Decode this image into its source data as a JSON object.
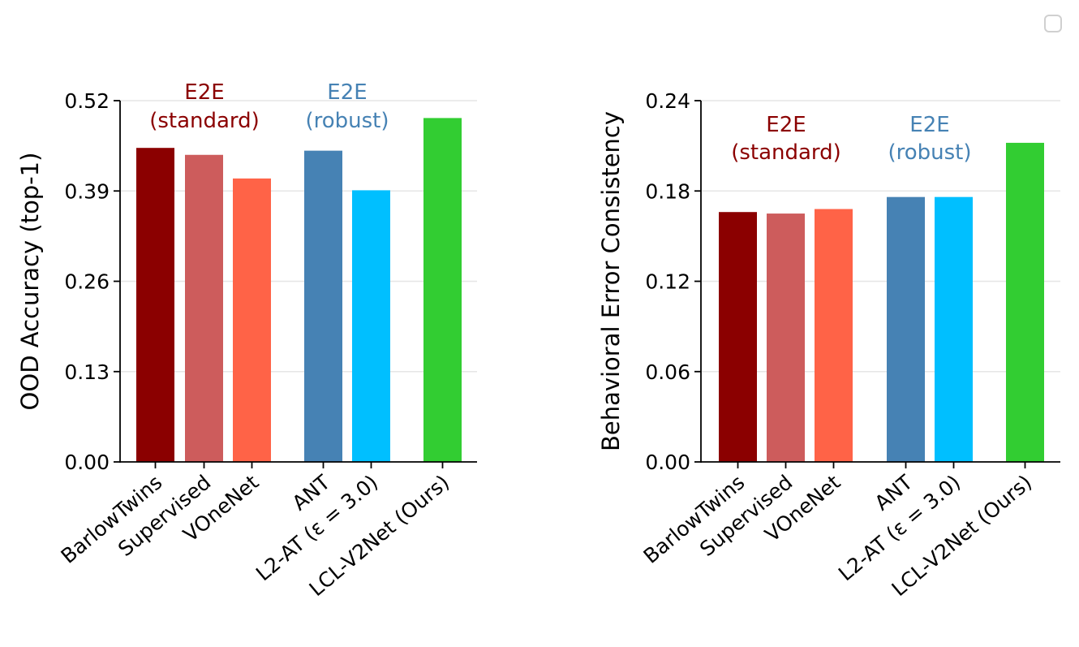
{
  "colors": {
    "standard": "#8b0000",
    "robust": "#4682b4",
    "grid": "#e6e6e6",
    "axis": "#000000"
  },
  "chart_data": [
    {
      "type": "bar",
      "ylabel": "OOD Accuracy (top-1)",
      "ylim": [
        0,
        0.52
      ],
      "yticks": [
        "0.00",
        "0.13",
        "0.26",
        "0.39",
        "0.52"
      ],
      "categories": [
        "BarlowTwins",
        "Supervised",
        "VOneNet",
        "ANT",
        "L2-AT (ε = 3.0)",
        "LCL-V2Net (Ours)"
      ],
      "values": [
        0.452,
        0.442,
        0.408,
        0.448,
        0.391,
        0.495
      ],
      "bar_colors": [
        "#8b0000",
        "#cd5c5c",
        "#ff6347",
        "#4682b4",
        "#00bfff",
        "#32cd32"
      ],
      "group_labels": [
        {
          "line1": "E2E",
          "line2": "(standard)",
          "color": "#8b0000"
        },
        {
          "line1": "E2E",
          "line2": "(robust)",
          "color": "#4682b4"
        }
      ]
    },
    {
      "type": "bar",
      "ylabel": "Behavioral Error Consistency",
      "ylim": [
        0,
        0.24
      ],
      "yticks": [
        "0.00",
        "0.06",
        "0.12",
        "0.18",
        "0.24"
      ],
      "categories": [
        "BarlowTwins",
        "Supervised",
        "VOneNet",
        "ANT",
        "L2-AT (ε = 3.0)",
        "LCL-V2Net (Ours)"
      ],
      "values": [
        0.166,
        0.165,
        0.168,
        0.176,
        0.176,
        0.212
      ],
      "bar_colors": [
        "#8b0000",
        "#cd5c5c",
        "#ff6347",
        "#4682b4",
        "#00bfff",
        "#32cd32"
      ],
      "group_labels": [
        {
          "line1": "E2E",
          "line2": "(standard)",
          "color": "#8b0000"
        },
        {
          "line1": "E2E",
          "line2": "(robust)",
          "color": "#4682b4"
        }
      ]
    }
  ]
}
